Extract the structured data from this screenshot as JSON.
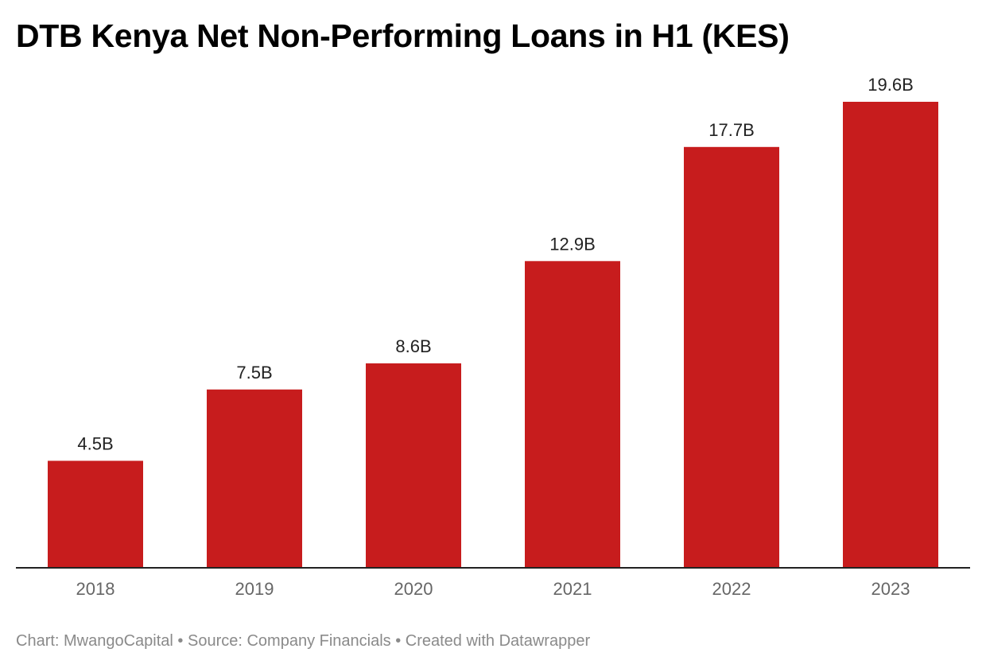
{
  "chart_data": {
    "type": "bar",
    "title": "DTB Kenya Net Non-Performing Loans in H1 (KES)",
    "categories": [
      "2018",
      "2019",
      "2020",
      "2021",
      "2022",
      "2023"
    ],
    "values": [
      4.5,
      7.5,
      8.6,
      12.9,
      17.7,
      19.6
    ],
    "value_labels": [
      "4.5B",
      "7.5B",
      "8.6B",
      "12.9B",
      "17.7B",
      "19.6B"
    ],
    "xlabel": "",
    "ylabel": "",
    "ylim": [
      0,
      19.6
    ],
    "grid": false,
    "legend": "none",
    "bar_color": "#c71c1d"
  },
  "footer": {
    "text": "Chart: MwangoCapital • Source: Company Financials • Created with Datawrapper"
  }
}
